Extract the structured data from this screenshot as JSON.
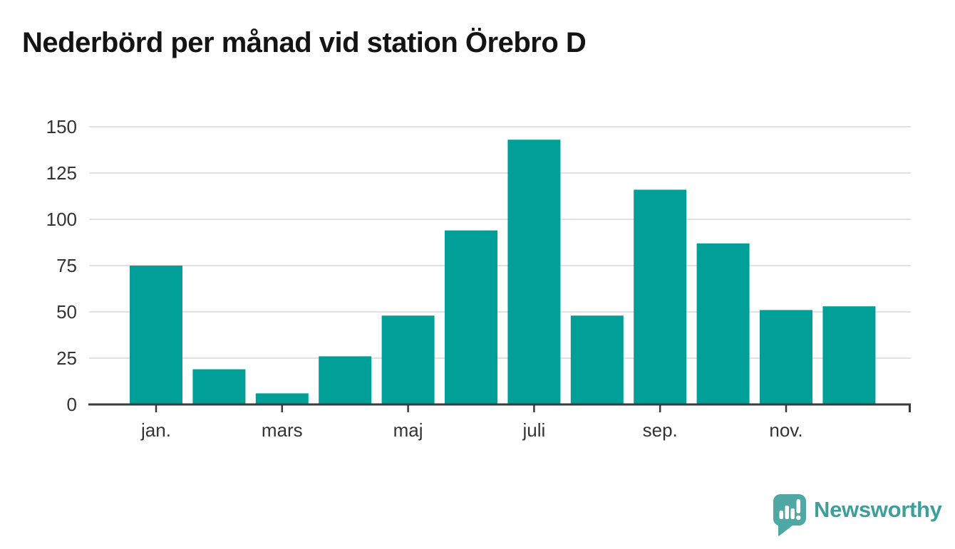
{
  "title": "Nederbörd per månad vid station Örebro D",
  "chart_data": {
    "type": "bar",
    "title": "Nederbörd per månad vid station Örebro D",
    "n_bars": 12,
    "values": [
      75,
      19,
      6,
      26,
      48,
      94,
      143,
      48,
      116,
      87,
      51,
      53
    ],
    "x_tick_labels": [
      "jan.",
      "mars",
      "maj",
      "juli",
      "sep.",
      "nov."
    ],
    "x_tick_bar_indexes": [
      0,
      2,
      4,
      6,
      8,
      10
    ],
    "y_ticks": [
      0,
      25,
      50,
      75,
      100,
      125,
      150
    ],
    "ylim": [
      0,
      150
    ],
    "grid": "horizontal",
    "legend": "none",
    "bar_color": "#00a099"
  },
  "colors": {
    "bar": "#00a099",
    "axis": "#3a3a3a",
    "gridline": "#e1e1e1",
    "tick_label": "#333333",
    "title": "#141414",
    "logo": "#4fa8a3",
    "logo_text": "#3e9e9a",
    "background": "#ffffff"
  },
  "branding": {
    "name": "Newsworthy",
    "icon": "newsworthy-speech-bubble-barchart-icon"
  }
}
